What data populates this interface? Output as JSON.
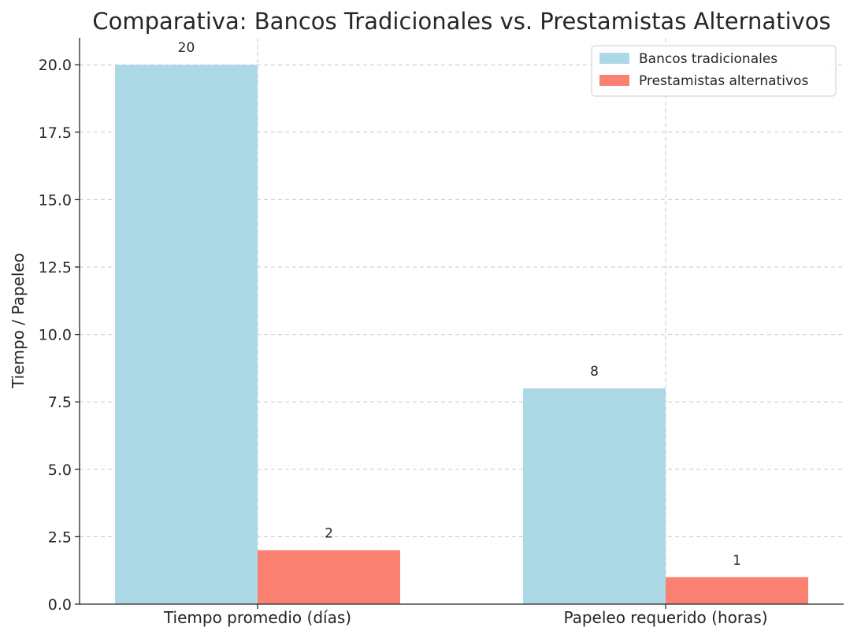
{
  "chart_data": {
    "type": "bar",
    "title": "Comparativa: Bancos Tradicionales vs. Prestamistas Alternativos",
    "xlabel": "",
    "ylabel": "Tiempo / Papeleo",
    "categories": [
      "Tiempo promedio (días)",
      "Papeleo requerido (horas)"
    ],
    "series": [
      {
        "name": "Bancos tradicionales",
        "values": [
          20,
          8
        ],
        "color": "#add8e6"
      },
      {
        "name": "Prestamistas alternativos",
        "values": [
          2,
          1
        ],
        "color": "#fa8072"
      }
    ],
    "ylim": [
      0,
      21
    ],
    "yticks": [
      "0.0",
      "2.5",
      "5.0",
      "7.5",
      "10.0",
      "12.5",
      "15.0",
      "17.5",
      "20.0"
    ],
    "ytick_values": [
      0,
      2.5,
      5,
      7.5,
      10,
      12.5,
      15,
      17.5,
      20
    ],
    "grid": true,
    "legend_position": "top-right"
  }
}
